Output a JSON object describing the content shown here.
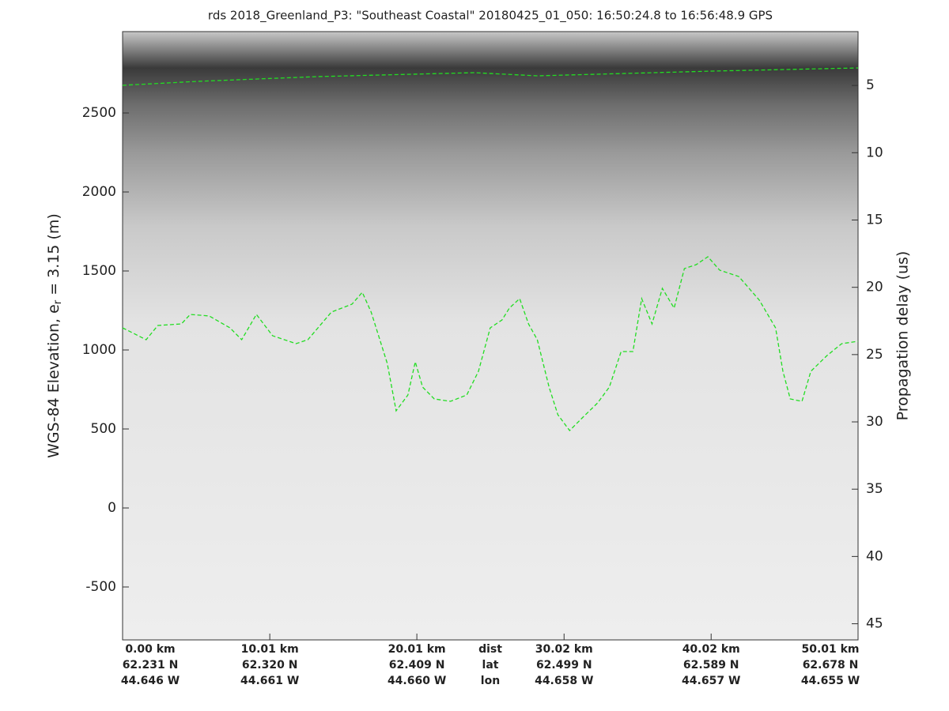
{
  "chart_data": {
    "type": "line",
    "title": "rds 2018_Greenland_P3: \"Southeast Coastal\"  20180425_01_050: 16:50:24.8 to 16:56:48.9 GPS",
    "ylabel": "WGS-84 Elevation, e",
    "ylabel_sub": "r",
    "ylabel_rest": " = 3.15 (m)",
    "y2label": "Propagation delay (us)",
    "xlim": [
      0,
      50.01
    ],
    "xticks": [
      0,
      10.01,
      20.01,
      30.02,
      40.02,
      50.01
    ],
    "xtick_rows": {
      "dist": [
        "0.00 km",
        "10.01 km",
        "20.01 km",
        "30.02 km",
        "40.02 km",
        "50.01 km"
      ],
      "lat": [
        "62.231 N",
        "62.320 N",
        "62.409 N",
        "62.499 N",
        "62.589 N",
        "62.678 N"
      ],
      "lon": [
        "44.646 W",
        "44.661 W",
        "44.660 W",
        "44.658 W",
        "44.657 W",
        "44.655 W"
      ]
    },
    "row_names": [
      "dist",
      "lat",
      "lon"
    ],
    "ylim": [
      -835,
      3015
    ],
    "yticks": [
      -500,
      0,
      500,
      1000,
      1500,
      2000,
      2500
    ],
    "y2lim": [
      46.2,
      1.0
    ],
    "y2ticks": [
      5,
      10,
      15,
      20,
      25,
      30,
      35,
      40,
      45
    ],
    "series": [
      {
        "name": "surface",
        "color": "#22dd22",
        "x": [
          0,
          5.1,
          13.2,
          23.9,
          28.2,
          40.1,
          50.01
        ],
        "values": [
          2675,
          2700,
          2730,
          2755,
          2735,
          2765,
          2785
        ]
      },
      {
        "name": "bed",
        "color": "#22dd22",
        "x": [
          0,
          1.6,
          2.4,
          4.0,
          4.6,
          5.9,
          7.3,
          8.1,
          9.1,
          10.2,
          11.8,
          12.6,
          14.2,
          15.6,
          16.3,
          16.9,
          18.0,
          18.6,
          19.4,
          19.9,
          20.4,
          21.2,
          22.3,
          23.4,
          24.2,
          25.0,
          25.8,
          26.3,
          27.0,
          27.6,
          28.2,
          29.0,
          29.6,
          30.4,
          31.2,
          32.3,
          33.1,
          33.9,
          34.7,
          35.3,
          36.0,
          36.7,
          37.5,
          38.2,
          39.0,
          39.8,
          40.6,
          41.9,
          43.3,
          44.4,
          44.9,
          45.4,
          46.2,
          46.8,
          47.9,
          48.9,
          50.01
        ],
        "values": [
          1140,
          1065,
          1155,
          1165,
          1225,
          1215,
          1140,
          1065,
          1225,
          1090,
          1040,
          1065,
          1240,
          1290,
          1365,
          1240,
          915,
          615,
          715,
          925,
          765,
          690,
          675,
          715,
          865,
          1140,
          1190,
          1265,
          1325,
          1165,
          1065,
          765,
          590,
          490,
          565,
          665,
          765,
          990,
          990,
          1325,
          1165,
          1390,
          1265,
          1515,
          1540,
          1590,
          1505,
          1465,
          1315,
          1140,
          865,
          690,
          675,
          865,
          965,
          1040,
          1055
        ]
      }
    ]
  }
}
